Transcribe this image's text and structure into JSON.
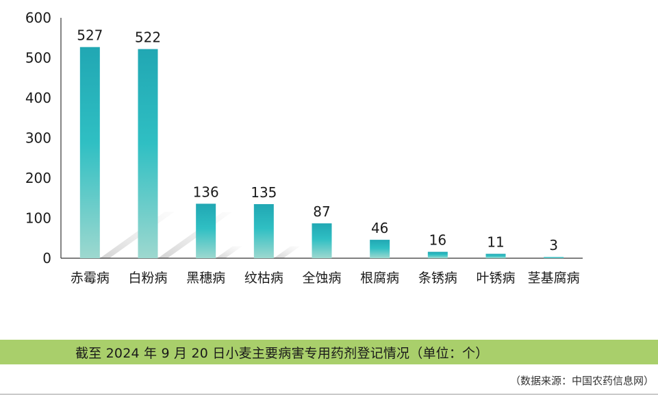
{
  "chart_data": {
    "type": "bar",
    "categories": [
      "赤霉病",
      "白粉病",
      "黑穗病",
      "纹枯病",
      "全蚀病",
      "根腐病",
      "条锈病",
      "叶锈病",
      "茎基腐病"
    ],
    "values": [
      527,
      522,
      136,
      135,
      87,
      46,
      16,
      11,
      3
    ],
    "ylim": [
      0,
      600
    ],
    "yticks": [
      0,
      100,
      200,
      300,
      400,
      500,
      600
    ],
    "data_labels": true,
    "grid": false,
    "colors": {
      "bar_top": "#21a7b3",
      "bar_mid": "#2fbfc3",
      "bar_bottom": "#9dd8cf",
      "shadow": "#d7d7d7"
    }
  },
  "caption": "截至 2024 年 9 月 20 日小麦主要病害专用药剂登记情况（单位：个）",
  "source": "（数据来源：中国农药信息网）",
  "colors": {
    "caption_bg": "#a9cf6b"
  }
}
